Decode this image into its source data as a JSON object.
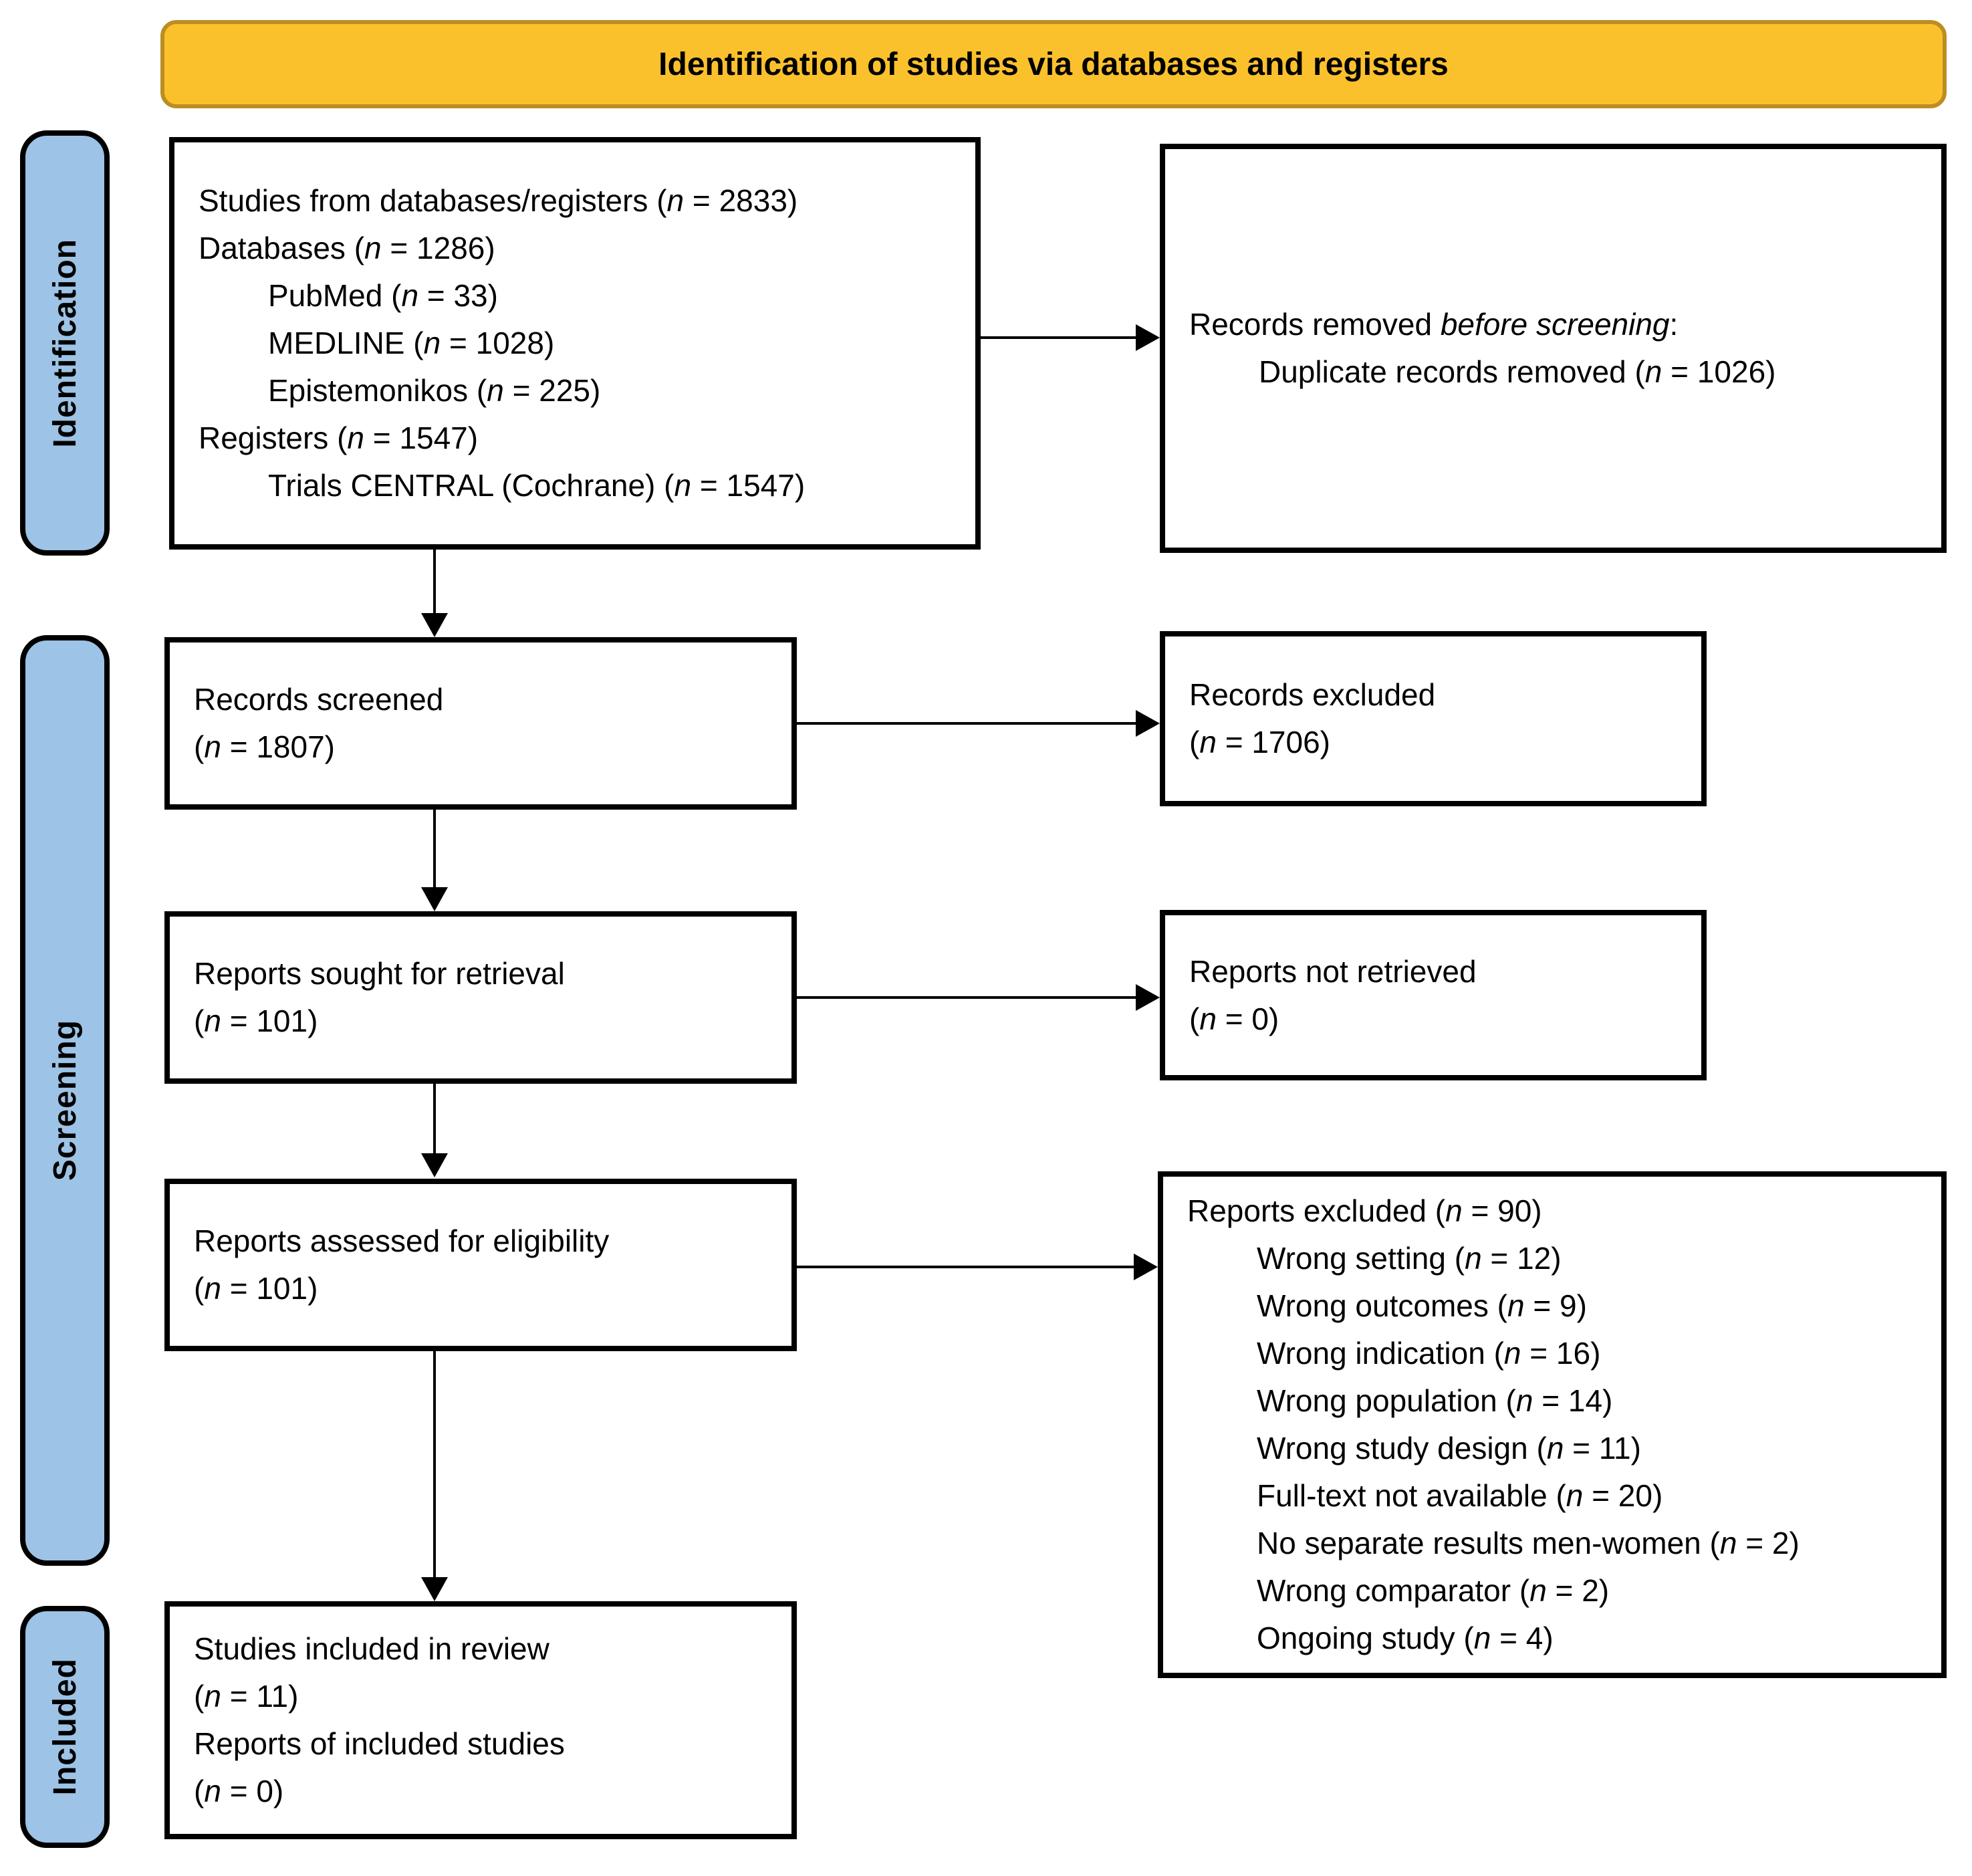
{
  "banner": {
    "title": "Identification of studies via databases and registers"
  },
  "stages": [
    {
      "label": "Identification"
    },
    {
      "label": "Screening"
    },
    {
      "label": "Included"
    }
  ],
  "colors": {
    "banner_fill": "#FBC12D",
    "banner_border": "#BC8D21",
    "stage_fill": "#9DC3E6",
    "line_color": "#000000"
  },
  "boxes": {
    "sources": {
      "lines": [
        "Studies from databases/registers (*n* = 2833)",
        "Databases (*n* = 1286)",
        "\tPubMed (*n* = 33)",
        "\tMEDLINE (*n* = 1028)",
        "\tEpistemonikos (*n* = 225)",
        "Registers (*n* = 1547)",
        "\tTrials CENTRAL (Cochrane) (*n* = 1547)"
      ]
    },
    "records_removed": {
      "lines": [
        "Records removed *before screening*:",
        "\tDuplicate records removed (*n* = 1026)"
      ]
    },
    "records_screened": {
      "lines": [
        "Records screened",
        "(*n* = 1807)"
      ]
    },
    "records_excluded": {
      "lines": [
        "Records excluded",
        "(*n* = 1706)"
      ]
    },
    "reports_sought": {
      "lines": [
        "Reports sought for retrieval",
        "(*n* = 101)"
      ]
    },
    "reports_not_retrieved": {
      "lines": [
        "Reports not retrieved",
        "(*n* = 0)"
      ]
    },
    "reports_assessed": {
      "lines": [
        "Reports assessed for eligibility",
        "(*n* = 101)"
      ]
    },
    "reports_excluded": {
      "lines": [
        "Reports excluded (*n* = 90)",
        "\tWrong setting (*n* = 12)",
        "\tWrong outcomes (*n* = 9)",
        "\tWrong indication (*n* = 16)",
        "\tWrong population (*n* = 14)",
        "\tWrong study design (*n* = 11)",
        "\tFull-text not available (*n* = 20)",
        "\tNo separate results men-women (*n* = 2)",
        "\tWrong comparator (*n* = 2)",
        "\tOngoing study (*n* = 4)"
      ]
    },
    "studies_included": {
      "lines": [
        "Studies included in review",
        "(*n* = 11)",
        "Reports of included studies",
        "(*n* = 0)"
      ]
    }
  }
}
